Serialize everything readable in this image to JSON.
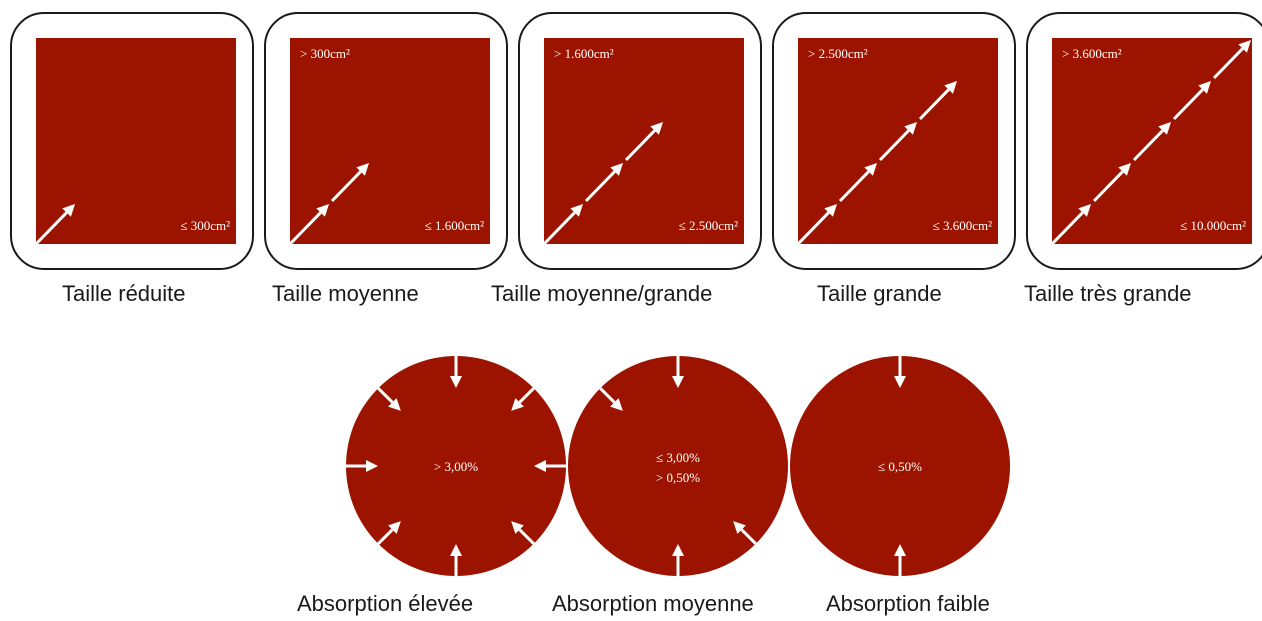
{
  "colors": {
    "fill": "#9c1400",
    "arrow": "#ffffff",
    "border": "#1a1a1a"
  },
  "size_categories": [
    {
      "label": "Taille réduite",
      "top_text": "",
      "bottom_text": "≤ 300cm²",
      "arrow_segments": 1
    },
    {
      "label": "Taille moyenne",
      "top_text": "> 300cm²",
      "bottom_text": "≤ 1.600cm²",
      "arrow_segments": 2
    },
    {
      "label": "Taille moyenne/grande",
      "top_text": "> 1.600cm²",
      "bottom_text": "≤ 2.500cm²",
      "arrow_segments": 3
    },
    {
      "label": "Taille grande",
      "top_text": "> 2.500cm²",
      "bottom_text": "≤ 3.600cm²",
      "arrow_segments": 4
    },
    {
      "label": "Taille très grande",
      "top_text": "> 3.600cm²",
      "bottom_text": "≤ 10.000cm²",
      "arrow_segments": 5
    }
  ],
  "absorption_categories": [
    {
      "label": "Absorption élevée",
      "text_lines": [
        "> 3,00%"
      ],
      "inward_arrows": 8
    },
    {
      "label": "Absorption moyenne",
      "text_lines": [
        "≤ 3,00%",
        "> 0,50%"
      ],
      "inward_arrows": 4
    },
    {
      "label": "Absorption faible",
      "text_lines": [
        "≤ 0,50%"
      ],
      "inward_arrows": 2
    }
  ]
}
